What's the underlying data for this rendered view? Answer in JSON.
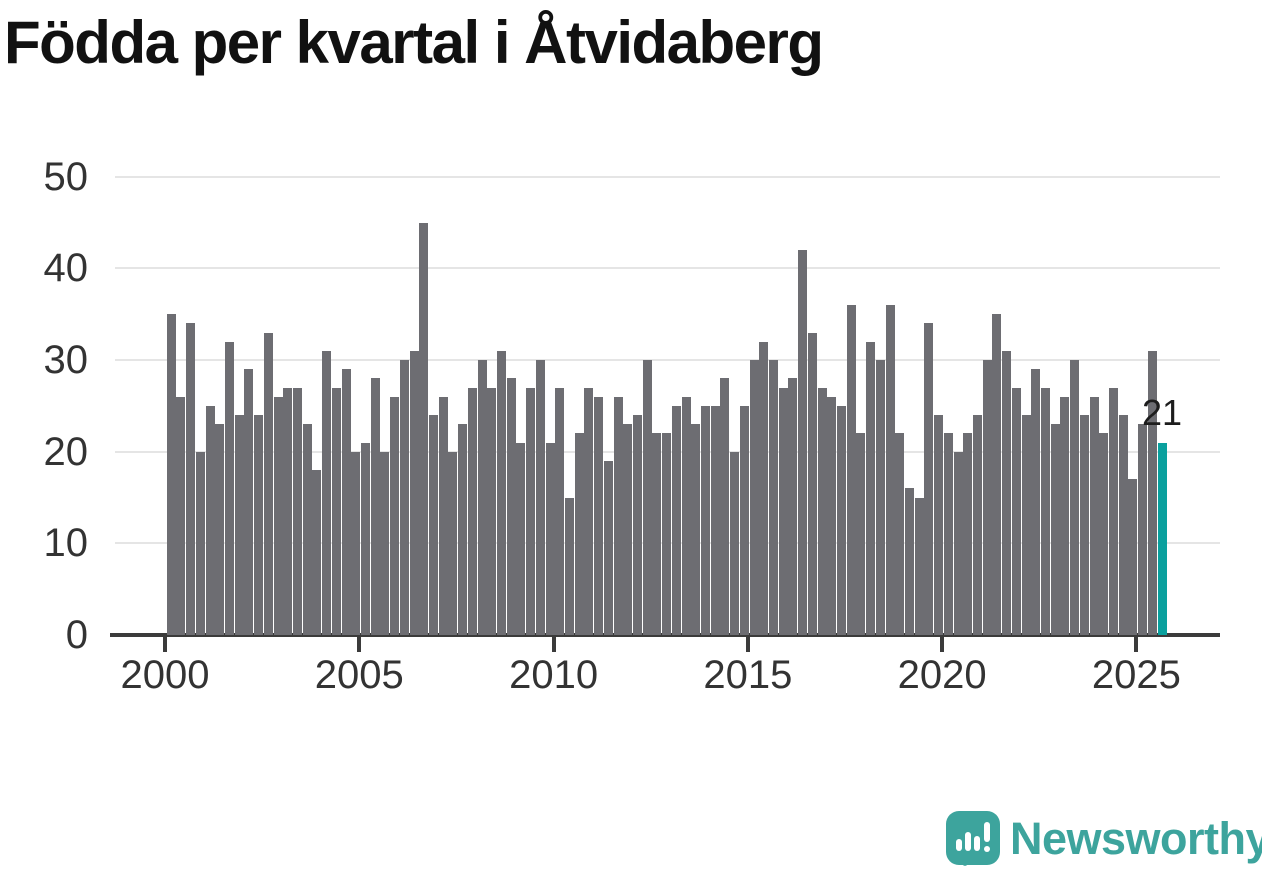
{
  "title": "Födda per kvartal i Åtvidaberg",
  "logo": {
    "text": "Newsworthy"
  },
  "colors": {
    "bar": "#6d6d72",
    "highlight": "#0aa09e",
    "grid": "#e5e5e5",
    "axis": "#3b3b3b",
    "tick_text": "#333333",
    "title_text": "#111111",
    "logo_teal": "#3da49d"
  },
  "chart_data": {
    "type": "bar",
    "title": "Födda per kvartal i Åtvidaberg",
    "start_quarter": "2000-Q1",
    "end_quarter": "2025-Q3",
    "values_by_year": {
      "2000": [
        35,
        26,
        34,
        20
      ],
      "2001": [
        25,
        23,
        32,
        24
      ],
      "2002": [
        29,
        24,
        33,
        26
      ],
      "2003": [
        27,
        27,
        23,
        18
      ],
      "2004": [
        31,
        27,
        29,
        20
      ],
      "2005": [
        21,
        28,
        20,
        26
      ],
      "2006": [
        30,
        31,
        45,
        24
      ],
      "2007": [
        26,
        20,
        23,
        27
      ],
      "2008": [
        30,
        27,
        31,
        28
      ],
      "2009": [
        21,
        27,
        30,
        21
      ],
      "2010": [
        27,
        15,
        22,
        27
      ],
      "2011": [
        26,
        19,
        26,
        23
      ],
      "2012": [
        24,
        30,
        22,
        22
      ],
      "2013": [
        25,
        26,
        23,
        25
      ],
      "2014": [
        25,
        28,
        20,
        25
      ],
      "2015": [
        30,
        32,
        30,
        27
      ],
      "2016": [
        28,
        42,
        33,
        27
      ],
      "2017": [
        26,
        25,
        36,
        22
      ],
      "2018": [
        32,
        30,
        36,
        22
      ],
      "2019": [
        16,
        15,
        34,
        24
      ],
      "2020": [
        22,
        20,
        22,
        24
      ],
      "2021": [
        30,
        35,
        31,
        27
      ],
      "2022": [
        24,
        29,
        27,
        23
      ],
      "2023": [
        26,
        30,
        24,
        26
      ],
      "2024": [
        22,
        27,
        24,
        17
      ],
      "2025": [
        23,
        31,
        21
      ]
    },
    "y_ticks": [
      0,
      10,
      20,
      30,
      40,
      50
    ],
    "ylim": [
      0,
      50
    ],
    "x_tick_labels": [
      "2000",
      "2005",
      "2010",
      "2015",
      "2020",
      "2025"
    ],
    "grid": "horizontal",
    "legend": "none",
    "bar_color": "#6d6d72",
    "highlight": {
      "quarter": "2025-Q3",
      "value": 21,
      "label": "21",
      "color": "#0aa09e"
    }
  }
}
